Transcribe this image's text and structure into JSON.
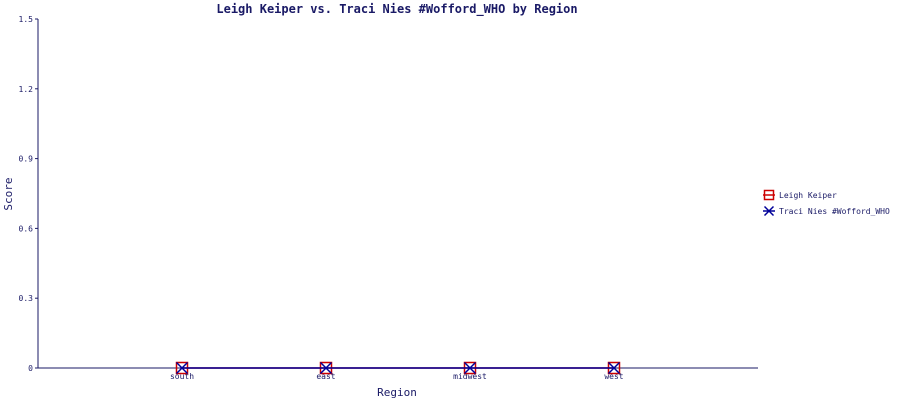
{
  "chart_data": {
    "type": "line",
    "title": "Leigh Keiper vs. Traci Nies #Wofford_WHO by Region",
    "xlabel": "Region",
    "ylabel": "Score",
    "categories": [
      "south",
      "east",
      "midwest",
      "west"
    ],
    "ylim": [
      0,
      1.5
    ],
    "yticks": [
      0,
      0.3,
      0.6,
      0.9,
      1.2,
      1.5
    ],
    "ytick_labels": [
      "0",
      "0.3",
      "0.6",
      "0.9",
      "1.2",
      "1.5"
    ],
    "grid": false,
    "legend_position": "right",
    "series": [
      {
        "name": "Leigh Keiper",
        "values": [
          0,
          0,
          0,
          0
        ],
        "color": "#cc0000",
        "marker": "square"
      },
      {
        "name": "Traci Nies #Wofford_WHO",
        "values": [
          0,
          0,
          0,
          0
        ],
        "color": "#000099",
        "marker": "x"
      }
    ]
  }
}
